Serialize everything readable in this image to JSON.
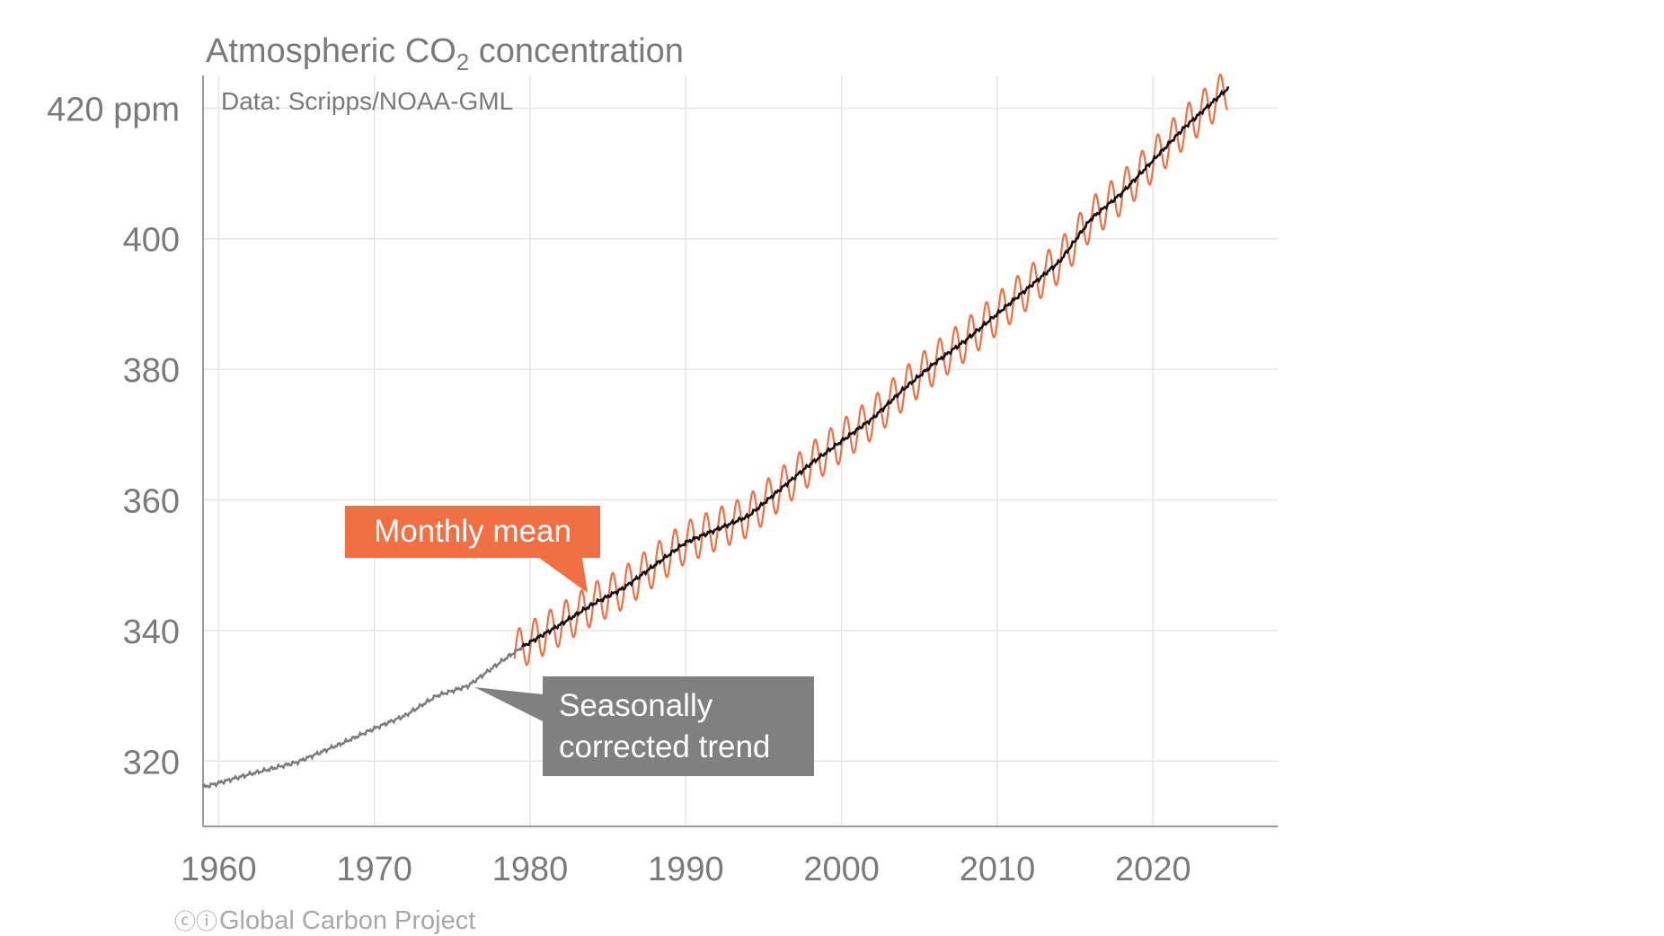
{
  "chart_data": {
    "type": "line",
    "title_main": "Atmospheric CO",
    "title_sub": "2",
    "title_rest": " concentration",
    "source": "Data: Scripps/NOAA-GML",
    "credit_symbols": "ⓒⓘ",
    "credit": "Global Carbon Project",
    "xlim": [
      1959,
      2028
    ],
    "ylim": [
      310,
      425
    ],
    "x_ticks": [
      1960,
      1970,
      1980,
      1990,
      2000,
      2010,
      2020
    ],
    "x_tick_labels": [
      "1960",
      "1970",
      "1980",
      "1990",
      "2000",
      "2010",
      "2020"
    ],
    "y_ticks": [
      320,
      340,
      360,
      380,
      400,
      420
    ],
    "y_tick_labels": [
      "320",
      "340",
      "360",
      "380",
      "400",
      "420 ppm"
    ],
    "grid": true,
    "series": [
      {
        "name": "Monthly mean",
        "color": "#f07043",
        "x_range": [
          1979.0,
          2024.8
        ],
        "seasonal_amplitude_ppm": 3.2
      },
      {
        "name": "Seasonally corrected trend",
        "color_early": "#7a7a7a",
        "color_late": "#111111",
        "x": [
          1959,
          1962,
          1965,
          1968,
          1970,
          1972,
          1974,
          1976,
          1978,
          1979.5,
          1982,
          1984,
          1986,
          1988,
          1990,
          1992,
          1994,
          1996,
          1998,
          2000,
          2002,
          2004,
          2006,
          2008,
          2010,
          2012,
          2014,
          2016,
          2018,
          2020,
          2022,
          2024.8
        ],
        "y": [
          316.0,
          318.0,
          319.8,
          322.8,
          325.0,
          327.0,
          330.0,
          331.5,
          335.0,
          337.5,
          341.0,
          344.0,
          346.5,
          350.0,
          353.5,
          355.5,
          357.5,
          361.5,
          365.5,
          369.0,
          372.5,
          377.0,
          381.0,
          384.5,
          388.5,
          392.5,
          396.5,
          403.0,
          407.0,
          412.0,
          417.0,
          423.0
        ],
        "transition_x": 1979.5
      }
    ],
    "annotations": [
      {
        "label": "Monthly mean",
        "color": "#f07043"
      },
      {
        "label_line1": "Seasonally",
        "label_line2": "corrected trend",
        "color": "#808080"
      }
    ]
  }
}
